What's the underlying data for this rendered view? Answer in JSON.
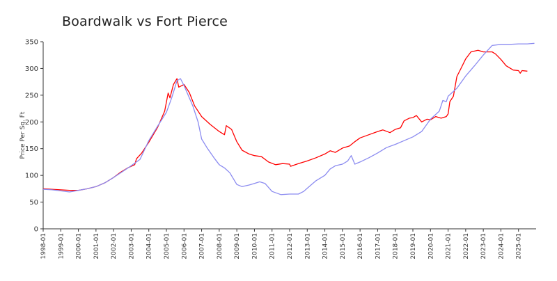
{
  "chart_data": {
    "type": "line",
    "title": "Boardwalk vs Fort Pierce",
    "xlabel": "",
    "ylabel": "Price Per Sq. Ft",
    "ylim": [
      0,
      350
    ],
    "yticks": [
      0,
      50,
      100,
      150,
      200,
      250,
      300,
      350
    ],
    "xlim": [
      1998.0,
      2026.0
    ],
    "xtick_labels": [
      "1998-01",
      "1999-01",
      "2000-01",
      "2001-01",
      "2002-01",
      "2003-01",
      "2004-01",
      "2005-01",
      "2006-01",
      "2007-01",
      "2008-01",
      "2009-01",
      "2010-01",
      "2011-01",
      "2012-01",
      "2013-01",
      "2014-01",
      "2015-01",
      "2016-01",
      "2017-01",
      "2018-01",
      "2019-01",
      "2020-01",
      "2021-01",
      "2022-01",
      "2023-01",
      "2024-01",
      "2025-01"
    ],
    "grid": false,
    "legend": "none",
    "colors": {
      "red_series": "#ff0000",
      "blue_series": "#8b8bf0",
      "axis": "#333333"
    },
    "series": [
      {
        "color": "#ff0000",
        "points": [
          [
            1998.0,
            75
          ],
          [
            1998.5,
            74
          ],
          [
            1999.0,
            73
          ],
          [
            1999.5,
            72
          ],
          [
            2000.0,
            72
          ],
          [
            2000.5,
            75
          ],
          [
            2001.0,
            79
          ],
          [
            2001.5,
            86
          ],
          [
            2002.0,
            96
          ],
          [
            2002.4,
            106
          ],
          [
            2002.8,
            114
          ],
          [
            2003.2,
            120
          ],
          [
            2003.3,
            131
          ],
          [
            2003.6,
            142
          ],
          [
            2004.0,
            162
          ],
          [
            2004.5,
            190
          ],
          [
            2004.9,
            220
          ],
          [
            2005.1,
            254
          ],
          [
            2005.2,
            245
          ],
          [
            2005.4,
            270
          ],
          [
            2005.6,
            281
          ],
          [
            2005.7,
            265
          ],
          [
            2006.0,
            270
          ],
          [
            2006.3,
            255
          ],
          [
            2006.6,
            230
          ],
          [
            2007.0,
            210
          ],
          [
            2007.5,
            195
          ],
          [
            2008.0,
            182
          ],
          [
            2008.3,
            176
          ],
          [
            2008.4,
            193
          ],
          [
            2008.7,
            186
          ],
          [
            2009.0,
            163
          ],
          [
            2009.3,
            147
          ],
          [
            2009.7,
            140
          ],
          [
            2010.0,
            137
          ],
          [
            2010.4,
            135
          ],
          [
            2010.8,
            125
          ],
          [
            2011.2,
            120
          ],
          [
            2011.6,
            122
          ],
          [
            2012.0,
            121
          ],
          [
            2012.05,
            117
          ],
          [
            2012.5,
            122
          ],
          [
            2013.0,
            127
          ],
          [
            2013.5,
            133
          ],
          [
            2014.0,
            140
          ],
          [
            2014.3,
            146
          ],
          [
            2014.6,
            143
          ],
          [
            2015.0,
            151
          ],
          [
            2015.4,
            155
          ],
          [
            2015.7,
            163
          ],
          [
            2016.0,
            170
          ],
          [
            2016.5,
            176
          ],
          [
            2017.0,
            182
          ],
          [
            2017.3,
            185
          ],
          [
            2017.7,
            180
          ],
          [
            2018.0,
            186
          ],
          [
            2018.3,
            189
          ],
          [
            2018.5,
            202
          ],
          [
            2018.8,
            207
          ],
          [
            2019.0,
            208
          ],
          [
            2019.2,
            212
          ],
          [
            2019.5,
            200
          ],
          [
            2019.8,
            205
          ],
          [
            2020.0,
            204
          ],
          [
            2020.3,
            210
          ],
          [
            2020.6,
            207
          ],
          [
            2020.9,
            210
          ],
          [
            2021.0,
            215
          ],
          [
            2021.1,
            238
          ],
          [
            2021.3,
            248
          ],
          [
            2021.5,
            285
          ],
          [
            2021.7,
            298
          ],
          [
            2022.0,
            318
          ],
          [
            2022.3,
            331
          ],
          [
            2022.7,
            334
          ],
          [
            2023.0,
            331
          ],
          [
            2023.5,
            331
          ],
          [
            2023.7,
            327
          ],
          [
            2024.0,
            317
          ],
          [
            2024.3,
            305
          ],
          [
            2024.7,
            297
          ],
          [
            2025.0,
            296
          ],
          [
            2025.1,
            291
          ],
          [
            2025.2,
            296
          ],
          [
            2025.5,
            295
          ]
        ]
      },
      {
        "color": "#8b8bf0",
        "points": [
          [
            1998.0,
            74
          ],
          [
            1998.5,
            73
          ],
          [
            1999.0,
            71
          ],
          [
            1999.5,
            69
          ],
          [
            2000.0,
            72
          ],
          [
            2000.5,
            75
          ],
          [
            2001.0,
            79
          ],
          [
            2001.5,
            86
          ],
          [
            2002.0,
            96
          ],
          [
            2002.5,
            107
          ],
          [
            2003.0,
            118
          ],
          [
            2003.5,
            130
          ],
          [
            2004.0,
            165
          ],
          [
            2004.5,
            192
          ],
          [
            2005.0,
            218
          ],
          [
            2005.3,
            245
          ],
          [
            2005.6,
            277
          ],
          [
            2005.8,
            281
          ],
          [
            2006.0,
            268
          ],
          [
            2006.5,
            230
          ],
          [
            2006.8,
            200
          ],
          [
            2007.0,
            168
          ],
          [
            2007.3,
            152
          ],
          [
            2007.7,
            133
          ],
          [
            2008.0,
            120
          ],
          [
            2008.3,
            114
          ],
          [
            2008.6,
            105
          ],
          [
            2009.0,
            83
          ],
          [
            2009.3,
            79
          ],
          [
            2009.7,
            82
          ],
          [
            2010.0,
            85
          ],
          [
            2010.3,
            88
          ],
          [
            2010.6,
            85
          ],
          [
            2011.0,
            70
          ],
          [
            2011.5,
            64
          ],
          [
            2012.0,
            65
          ],
          [
            2012.5,
            65
          ],
          [
            2012.8,
            70
          ],
          [
            2013.0,
            76
          ],
          [
            2013.5,
            90
          ],
          [
            2014.0,
            100
          ],
          [
            2014.3,
            112
          ],
          [
            2014.6,
            118
          ],
          [
            2015.0,
            121
          ],
          [
            2015.3,
            127
          ],
          [
            2015.5,
            137
          ],
          [
            2015.7,
            121
          ],
          [
            2016.0,
            125
          ],
          [
            2016.5,
            133
          ],
          [
            2017.0,
            142
          ],
          [
            2017.5,
            152
          ],
          [
            2018.0,
            158
          ],
          [
            2018.5,
            165
          ],
          [
            2019.0,
            172
          ],
          [
            2019.5,
            182
          ],
          [
            2020.0,
            205
          ],
          [
            2020.5,
            220
          ],
          [
            2020.7,
            240
          ],
          [
            2020.9,
            238
          ],
          [
            2021.0,
            248
          ],
          [
            2021.5,
            263
          ],
          [
            2022.0,
            286
          ],
          [
            2022.5,
            305
          ],
          [
            2023.0,
            325
          ],
          [
            2023.5,
            343
          ],
          [
            2024.0,
            345
          ],
          [
            2024.5,
            345
          ],
          [
            2025.0,
            346
          ],
          [
            2025.5,
            346
          ],
          [
            2025.9,
            347
          ]
        ]
      }
    ]
  }
}
